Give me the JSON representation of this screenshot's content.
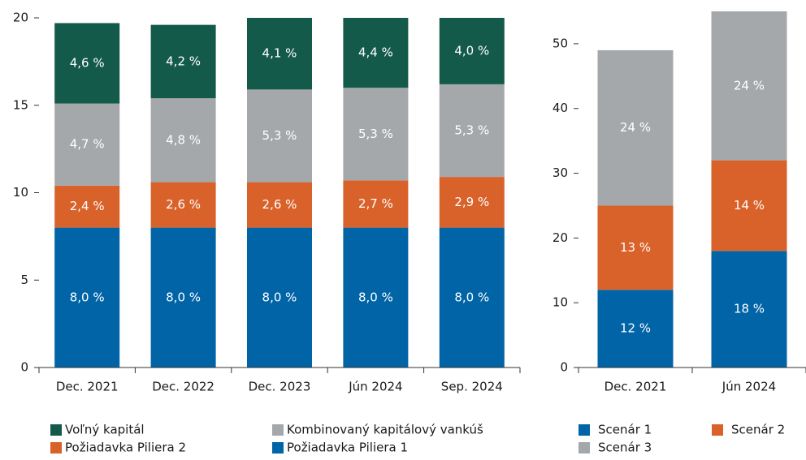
{
  "chart_data": [
    {
      "type": "bar",
      "stacked": true,
      "categories": [
        "Dec. 2021",
        "Dec. 2022",
        "Dec. 2023",
        "Jún 2024",
        "Sep. 2024"
      ],
      "series": [
        {
          "name": "Požiadavka Piliera 1",
          "color": "#0064a6",
          "values": [
            8.0,
            8.0,
            8.0,
            8.0,
            8.0
          ],
          "value_labels": [
            "8,0 %",
            "8,0 %",
            "8,0 %",
            "8,0 %",
            "8,0 %"
          ]
        },
        {
          "name": "Požiadavka Piliera 2",
          "color": "#d9622b",
          "values": [
            2.4,
            2.6,
            2.6,
            2.7,
            2.9
          ],
          "value_labels": [
            "2,4 %",
            "2,6 %",
            "2,6 %",
            "2,7 %",
            "2,9 %"
          ]
        },
        {
          "name": "Kombinovaný kapitálový vankúš",
          "color": "#a5a8aa",
          "values": [
            4.7,
            4.8,
            5.3,
            5.3,
            5.3
          ],
          "value_labels": [
            "4,7 %",
            "4,8 %",
            "5,3 %",
            "5,3 %",
            "5,3 %"
          ]
        },
        {
          "name": "Voľný kapitál",
          "color": "#145a4a",
          "values": [
            4.6,
            4.2,
            4.1,
            4.4,
            4.0
          ],
          "value_labels": [
            "4,6 %",
            "4,2 %",
            "4,1 %",
            "4,4 %",
            "4,0 %"
          ]
        }
      ],
      "ylim": [
        0,
        20
      ],
      "yticks": [
        0,
        5,
        10,
        15,
        20
      ]
    },
    {
      "type": "bar",
      "stacked": true,
      "categories": [
        "Dec. 2021",
        "Jún 2024"
      ],
      "series": [
        {
          "name": "Scenár 1",
          "color": "#0064a6",
          "values": [
            12,
            18
          ],
          "value_labels": [
            "12 %",
            "18 %"
          ]
        },
        {
          "name": "Scenár 2",
          "color": "#d9622b",
          "values": [
            13,
            14
          ],
          "value_labels": [
            "13 %",
            "14 %"
          ]
        },
        {
          "name": "Scenár 3",
          "color": "#a5a8aa",
          "values": [
            24,
            24
          ],
          "value_labels": [
            "24 %",
            "24 %"
          ]
        }
      ],
      "ylim": [
        0,
        55
      ],
      "yticks": [
        0,
        10,
        20,
        30,
        40,
        50
      ]
    }
  ]
}
